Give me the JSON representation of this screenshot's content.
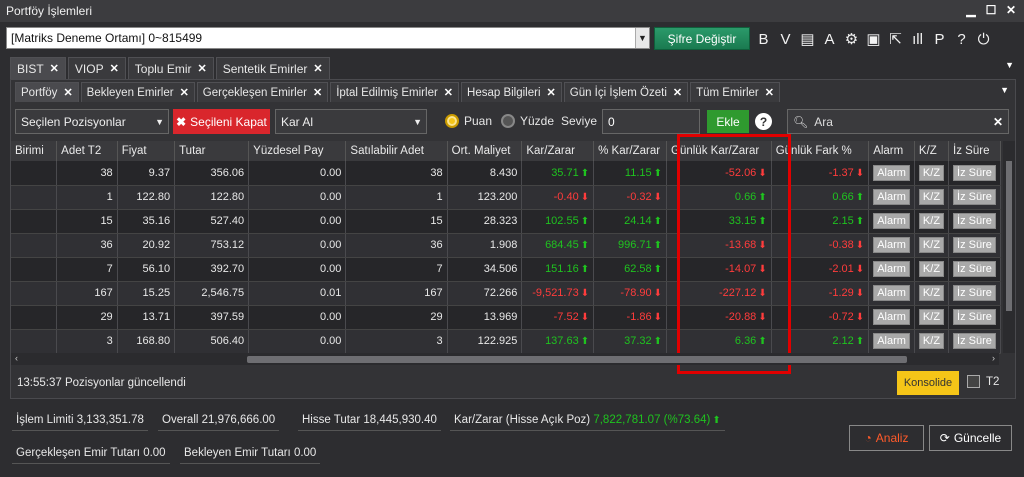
{
  "window": {
    "title": "Portföy İşlemleri"
  },
  "toolbar": {
    "account": "[Matriks Deneme Ortamı] 0~815499",
    "sifre_label": "Şifre Değiştir",
    "icons": [
      {
        "name": "bold-b-icon",
        "glyph": "B"
      },
      {
        "name": "italic-v-icon",
        "glyph": "V"
      },
      {
        "name": "document-icon",
        "glyph": "▤"
      },
      {
        "name": "font-a-icon",
        "glyph": "A"
      },
      {
        "name": "gear-icon",
        "glyph": "⚙"
      },
      {
        "name": "save-icon",
        "glyph": "▣"
      },
      {
        "name": "export-icon",
        "glyph": "⇱"
      },
      {
        "name": "chart-bars-icon",
        "glyph": "ıll"
      },
      {
        "name": "p-icon",
        "glyph": "P"
      },
      {
        "name": "help-icon",
        "glyph": "?"
      },
      {
        "name": "power-icon",
        "glyph": "⏻"
      }
    ]
  },
  "top_tabs": [
    "BIST",
    "VIOP",
    "Toplu Emir",
    "Sentetik Emirler"
  ],
  "sub_tabs": [
    "Portföy",
    "Bekleyen Emirler",
    "Gerçekleşen Emirler",
    "İptal Edilmiş Emirler",
    "Hesap Bilgileri",
    "Gün İçi İşlem Özeti",
    "Tüm Emirler"
  ],
  "filters": {
    "position_select": "Seçilen Pozisyonlar",
    "kapat_label": "Seçileni Kapat",
    "order_type": "Kar Al",
    "radio_puan": "Puan",
    "radio_yuzde": "Yüzde",
    "seviye_label": "Seviye",
    "seviye_value": "0",
    "ekle_label": "Ekle",
    "search_placeholder": "Ara"
  },
  "table": {
    "columns": [
      "Birimi",
      "Adet T2",
      "Fiyat",
      "Tutar",
      "Yüzdesel Pay",
      "Satılabilir Adet",
      "Ort. Maliyet",
      "Kar/Zarar",
      "% Kar/Zarar",
      "Günlük Kar/Zarar",
      "Günlük Fark %",
      "Alarm",
      "K/Z",
      "İz Süre"
    ],
    "rows": [
      {
        "birimi": "",
        "adet": "38",
        "fiyat": "9.37",
        "tutar": "356.06",
        "pay": "0.00",
        "satilabilir": "38",
        "maliyet": "8.430",
        "kz": "35.71",
        "kz_pct": "11.15",
        "gunluk_kz": "-52.06",
        "gunluk_fark": "-1.37"
      },
      {
        "birimi": "",
        "adet": "1",
        "fiyat": "122.80",
        "tutar": "122.80",
        "pay": "0.00",
        "satilabilir": "1",
        "maliyet": "123.200",
        "kz": "-0.40",
        "kz_pct": "-0.32",
        "gunluk_kz": "0.66",
        "gunluk_fark": "0.66"
      },
      {
        "birimi": "",
        "adet": "15",
        "fiyat": "35.16",
        "tutar": "527.40",
        "pay": "0.00",
        "satilabilir": "15",
        "maliyet": "28.323",
        "kz": "102.55",
        "kz_pct": "24.14",
        "gunluk_kz": "33.15",
        "gunluk_fark": "2.15"
      },
      {
        "birimi": "",
        "adet": "36",
        "fiyat": "20.92",
        "tutar": "753.12",
        "pay": "0.00",
        "satilabilir": "36",
        "maliyet": "1.908",
        "kz": "684.45",
        "kz_pct": "996.71",
        "gunluk_kz": "-13.68",
        "gunluk_fark": "-0.38"
      },
      {
        "birimi": "",
        "adet": "7",
        "fiyat": "56.10",
        "tutar": "392.70",
        "pay": "0.00",
        "satilabilir": "7",
        "maliyet": "34.506",
        "kz": "151.16",
        "kz_pct": "62.58",
        "gunluk_kz": "-14.07",
        "gunluk_fark": "-2.01"
      },
      {
        "birimi": "",
        "adet": "167",
        "fiyat": "15.25",
        "tutar": "2,546.75",
        "pay": "0.01",
        "satilabilir": "167",
        "maliyet": "72.266",
        "kz": "-9,521.73",
        "kz_pct": "-78.90",
        "gunluk_kz": "-227.12",
        "gunluk_fark": "-1.29"
      },
      {
        "birimi": "",
        "adet": "29",
        "fiyat": "13.71",
        "tutar": "397.59",
        "pay": "0.00",
        "satilabilir": "29",
        "maliyet": "13.969",
        "kz": "-7.52",
        "kz_pct": "-1.86",
        "gunluk_kz": "-20.88",
        "gunluk_fark": "-0.72"
      },
      {
        "birimi": "",
        "adet": "3",
        "fiyat": "168.80",
        "tutar": "506.40",
        "pay": "0.00",
        "satilabilir": "3",
        "maliyet": "122.925",
        "kz": "137.63",
        "kz_pct": "37.32",
        "gunluk_kz": "6.36",
        "gunluk_fark": "2.12"
      }
    ],
    "alarm_btn": "Alarm",
    "kz_btn": "K/Z",
    "iz_btn": "İz Süre"
  },
  "status": {
    "message": "13:55:37 Pozisyonlar güncellendi",
    "konsolide_label": "Konsolide",
    "t2_label": "T2"
  },
  "summary": {
    "islem_limiti_label": "İşlem Limiti",
    "islem_limiti_value": "3,133,351.78",
    "overall_label": "Overall",
    "overall_value": "21,976,666.00",
    "hisse_tutar_label": "Hisse Tutar",
    "hisse_tutar_value": "18,445,930.40",
    "kar_zarar_label": "Kar/Zarar (Hisse Açık Poz)",
    "kar_zarar_value": "7,822,781.07 (%73.64)",
    "gerceklesen_label": "Gerçekleşen Emir Tutarı",
    "gerceklesen_value": "0.00",
    "bekleyen_label": "Bekleyen Emir Tutarı",
    "bekleyen_value": "0.00",
    "analiz_label": "Analiz",
    "guncelle_label": "Güncelle"
  },
  "colors": {
    "positive": "#1fc31f",
    "negative": "#ff3c3c",
    "accent": "#f5c518",
    "highlight": "#e10000"
  }
}
